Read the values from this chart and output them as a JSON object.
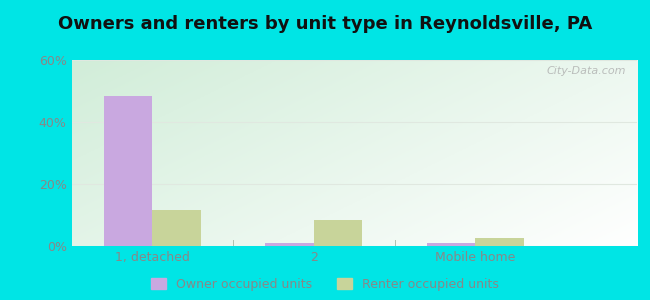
{
  "title": "Owners and renters by unit type in Reynoldsville, PA",
  "categories": [
    "1, detached",
    "2",
    "Mobile home"
  ],
  "owner_values": [
    48.5,
    1.0,
    1.0
  ],
  "renter_values": [
    11.5,
    8.5,
    2.5
  ],
  "owner_color": "#c9a8e0",
  "renter_color": "#c8d49a",
  "ylim": [
    0,
    60
  ],
  "yticks": [
    0,
    20,
    40,
    60
  ],
  "ytick_labels": [
    "0%",
    "20%",
    "40%",
    "60%"
  ],
  "bar_width": 0.3,
  "outer_background": "#00e5e5",
  "legend_owner_label": "Owner occupied units",
  "legend_renter_label": "Renter occupied units",
  "title_fontsize": 13,
  "watermark": "City-Data.com",
  "grid_color": "#e0e8e0",
  "separator_color": "#b0c0b0"
}
